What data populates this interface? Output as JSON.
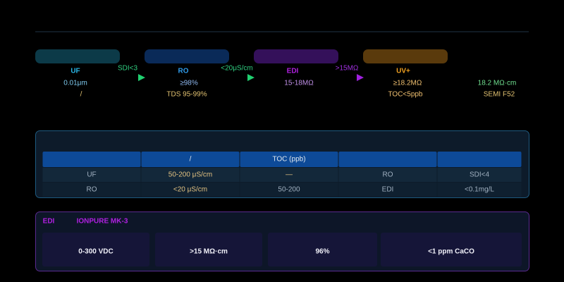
{
  "stages": [
    {
      "name": "UF",
      "spec": "0.01μm",
      "note": "/"
    },
    {
      "name": "RO",
      "spec": "≥98%",
      "note": "TDS 95-99%"
    },
    {
      "name": "EDI",
      "spec": "15-18MΩ"
    },
    {
      "name": "UV+",
      "spec": "≥18.2MΩ",
      "note": "TOC<5ppb"
    }
  ],
  "transitions": [
    "SDI<3",
    "<20μS/cm",
    ">15MΩ"
  ],
  "output": {
    "spec": "18.2 MΩ·cm",
    "standard": "SEMI F52"
  },
  "table": {
    "header": {
      "1": "/",
      "2": "TOC (ppb)"
    },
    "rows": [
      [
        "UF",
        "50-200 μS/cm",
        "—",
        "RO",
        "SDI<4"
      ],
      [
        "RO",
        "<20 μS/cm",
        "50-200",
        "EDI",
        "<0.1mg/L"
      ]
    ]
  },
  "edi_panel": {
    "title": "EDI",
    "model": "IONPURE MK-3",
    "cards": [
      "0-300 VDC",
      ">15 MΩ·cm",
      "96%",
      "<1 ppm CaCO"
    ]
  }
}
